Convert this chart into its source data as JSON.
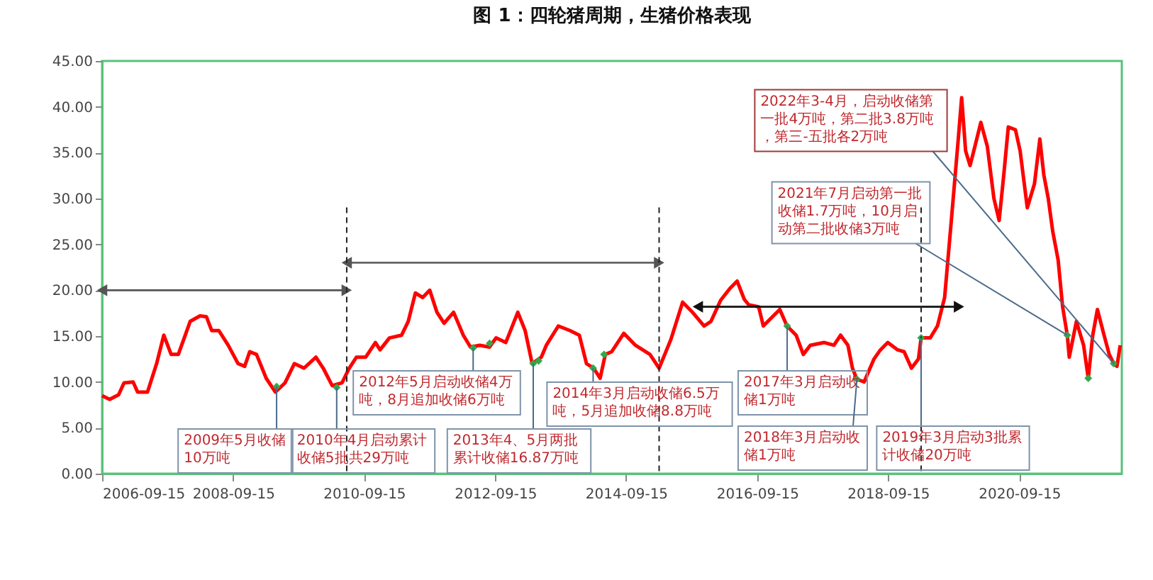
{
  "chart_data": {
    "type": "line",
    "title": "图 1：四轮猪周期，生猪价格表现",
    "xlim": [
      "2006-09-15",
      "2022-04-10"
    ],
    "xticks": [
      "2006-09-15",
      "2008-09-15",
      "2010-09-15",
      "2012-09-15",
      "2014-09-15",
      "2016-09-15",
      "2018-09-15",
      "2020-09-15"
    ],
    "ylim": [
      0,
      45
    ],
    "yticks": [
      {
        "value": 0,
        "label": "0.00"
      },
      {
        "value": 5,
        "label": "5.00"
      },
      {
        "value": 10,
        "label": "10.00"
      },
      {
        "value": 15,
        "label": "15.00"
      },
      {
        "value": 20,
        "label": "20.00"
      },
      {
        "value": 25,
        "label": "25.00"
      },
      {
        "value": 30,
        "label": "30.00"
      },
      {
        "value": 35,
        "label": "35.00"
      },
      {
        "value": 40,
        "label": "40.00"
      },
      {
        "value": 45,
        "label": "45.00"
      }
    ],
    "grid": false,
    "series": [
      {
        "type": "line",
        "color": "#ff0000",
        "marker": "none",
        "x": [
          "2006-09-15",
          "2006-10-27",
          "2006-12-16",
          "2007-01-15",
          "2007-03-07",
          "2007-04-01",
          "2007-05-26",
          "2007-07-16",
          "2007-08-25",
          "2007-10-05",
          "2007-11-14",
          "2008-01-19",
          "2008-03-14",
          "2008-04-19",
          "2008-05-18",
          "2008-06-27",
          "2008-08-18",
          "2008-10-12",
          "2008-11-18",
          "2008-12-16",
          "2009-01-23",
          "2009-03-18",
          "2009-05-08",
          "2009-07-01",
          "2009-08-22",
          "2009-10-15",
          "2009-12-20",
          "2010-01-30",
          "2010-03-21",
          "2010-05-15",
          "2010-06-24",
          "2010-08-03",
          "2010-09-24",
          "2010-11-17",
          "2010-12-13",
          "2011-02-03",
          "2011-04-12",
          "2011-05-19",
          "2011-06-28",
          "2011-08-07",
          "2011-09-16",
          "2011-10-26",
          "2011-12-05",
          "2012-01-27",
          "2012-03-21",
          "2012-04-30",
          "2012-06-21",
          "2012-08-14",
          "2012-09-20",
          "2012-11-13",
          "2013-01-19",
          "2013-03-01",
          "2013-04-09",
          "2013-05-30",
          "2013-06-27",
          "2013-09-02",
          "2013-11-06",
          "2013-12-28",
          "2014-02-06",
          "2014-03-18",
          "2014-04-23",
          "2014-05-22",
          "2014-06-27",
          "2014-09-02",
          "2014-11-06",
          "2015-01-26",
          "2015-03-18",
          "2015-05-22",
          "2015-07-27",
          "2015-09-20",
          "2015-11-24",
          "2016-01-01",
          "2016-02-24",
          "2016-04-16",
          "2016-05-26",
          "2016-07-05",
          "2016-07-30",
          "2016-09-23",
          "2016-10-19",
          "2016-12-09",
          "2017-01-19",
          "2017-02-28",
          "2017-04-20",
          "2017-05-30",
          "2017-07-08",
          "2017-09-24",
          "2017-11-17",
          "2017-12-24",
          "2018-02-03",
          "2018-02-28",
          "2018-03-25",
          "2018-05-04",
          "2018-06-28",
          "2018-08-03",
          "2018-09-13",
          "2018-11-07",
          "2018-12-13",
          "2019-01-23",
          "2019-03-03",
          "2019-03-18",
          "2019-05-08",
          "2019-06-17",
          "2019-07-27",
          "2019-09-02",
          "2019-10-12",
          "2019-10-30",
          "2019-11-21",
          "2019-12-16",
          "2020-01-12",
          "2020-02-14",
          "2020-03-21",
          "2020-04-27",
          "2020-05-26",
          "2020-06-21",
          "2020-07-16",
          "2020-08-25",
          "2020-09-20",
          "2020-10-30",
          "2020-12-09",
          "2021-01-08",
          "2021-01-30",
          "2021-02-24",
          "2021-03-21",
          "2021-04-20",
          "2021-05-15",
          "2021-06-10",
          "2021-06-21",
          "2021-07-31",
          "2021-09-09",
          "2021-10-05",
          "2021-10-30",
          "2021-11-25",
          "2022-01-01",
          "2022-01-30",
          "2022-02-24",
          "2022-03-14",
          "2022-04-01"
        ],
        "values": [
          8.5,
          8.1,
          8.6,
          9.9,
          10.0,
          8.9,
          8.9,
          12.0,
          15.1,
          13.0,
          13.0,
          16.6,
          17.2,
          17.1,
          15.6,
          15.6,
          14.0,
          12.0,
          11.7,
          13.3,
          13.0,
          10.4,
          8.9,
          9.9,
          12.0,
          11.5,
          12.7,
          11.5,
          9.6,
          9.9,
          11.5,
          12.7,
          12.7,
          14.3,
          13.5,
          14.8,
          15.1,
          16.6,
          19.7,
          19.2,
          20.0,
          17.6,
          16.4,
          17.6,
          15.1,
          13.8,
          14.0,
          13.8,
          14.8,
          14.3,
          17.6,
          15.6,
          12.0,
          12.7,
          14.0,
          16.1,
          15.6,
          15.1,
          12.0,
          11.5,
          10.4,
          13.0,
          13.3,
          15.3,
          14.0,
          13.0,
          11.5,
          14.6,
          18.7,
          17.6,
          16.1,
          16.6,
          18.9,
          20.2,
          21.0,
          19.0,
          18.4,
          18.2,
          16.1,
          17.1,
          17.9,
          16.1,
          15.1,
          13.0,
          14.0,
          14.3,
          14.0,
          15.1,
          14.0,
          11.5,
          10.3,
          10.0,
          12.5,
          13.5,
          14.3,
          13.5,
          13.3,
          11.5,
          12.5,
          14.8,
          14.8,
          16.1,
          19.2,
          27.5,
          36.7,
          41.0,
          35.2,
          33.6,
          35.7,
          38.3,
          35.7,
          30.0,
          27.6,
          32.6,
          37.8,
          37.5,
          35.2,
          29.0,
          31.6,
          36.5,
          32.6,
          30.0,
          26.4,
          23.3,
          18.2,
          15.1,
          12.7,
          16.6,
          14.0,
          10.4,
          15.1,
          17.9,
          15.1,
          13.0,
          12.0,
          11.7,
          14.0
        ]
      },
      {
        "type": "scatter",
        "color": "#2eaa4a",
        "marker": "diamond",
        "x": [
          "2009-05-15",
          "2010-04-15",
          "2012-05-15",
          "2012-08-15",
          "2013-04-15",
          "2013-05-15",
          "2014-03-15",
          "2014-05-15",
          "2017-03-01",
          "2018-03-25",
          "2019-03-18",
          "2021-06-10",
          "2021-10-05",
          "2022-02-24"
        ],
        "values": [
          9.5,
          9.4,
          13.7,
          14.2,
          12.0,
          12.3,
          11.5,
          13.0,
          16.1,
          10.3,
          14.8,
          15.1,
          10.4,
          12.0
        ]
      },
      {
        "type": "line",
        "color": "#555555",
        "marker": "triangle",
        "x": [
          "2006-09-15",
          "2010-06-10"
        ],
        "values": [
          20,
          20
        ]
      },
      {
        "type": "line",
        "color": "#555555",
        "marker": "triangle",
        "x": [
          "2010-06-10",
          "2015-03-18"
        ],
        "values": [
          23,
          23
        ]
      },
      {
        "type": "line",
        "color": "#111111",
        "marker": "triangle",
        "x": [
          "2015-10-20",
          "2019-10-15"
        ],
        "values": [
          18.2,
          18.2
        ]
      }
    ],
    "ref_lines": [
      {
        "axis": "x",
        "value": "2010-06-10",
        "color": "#222222",
        "line_style": "dashed"
      },
      {
        "axis": "x",
        "value": "2015-03-18",
        "color": "#222222",
        "line_style": "dashed"
      },
      {
        "axis": "x",
        "value": "2019-03-18",
        "color": "#222222",
        "line_style": "dashed"
      }
    ],
    "annotations": [
      {
        "text": "2009年5月收储10万吨",
        "x": "2009-05-15",
        "y": 9.5
      },
      {
        "text": "2010年4月启动累计收储5批共29万吨",
        "x": "2010-04-15",
        "y": 9.4
      },
      {
        "text": "2012年5月启动收储4万吨，8月追加收储6万吨",
        "x": "2012-05-15",
        "y": 13.7
      },
      {
        "text": "2013年4、5月两批累计收储16.87万吨",
        "x": "2013-04-15",
        "y": 12.0
      },
      {
        "text": "2014年3月启动收储6.5万吨，5月追加收储8.8万吨",
        "x": "2014-03-15",
        "y": 11.5
      },
      {
        "text": "2017年3月启动收储1万吨",
        "x": "2017-03-01",
        "y": 16.1
      },
      {
        "text": "2018年3月启动收储1万吨",
        "x": "2018-03-25",
        "y": 10.3
      },
      {
        "text": "2019年3月启动3批累计收储20万吨",
        "x": "2019-03-18",
        "y": 14.8
      },
      {
        "text": "2021年7月启动第一批收储1.7万吨，10月启动第二批收储3万吨",
        "x": "2021-06-10",
        "y": 15.1
      },
      {
        "text": "2022年3-4月，启动收储第一批4万吨，第二批3.8万吨，第三-五批各2万吨",
        "x": "2022-02-24",
        "y": 12.0
      }
    ]
  }
}
